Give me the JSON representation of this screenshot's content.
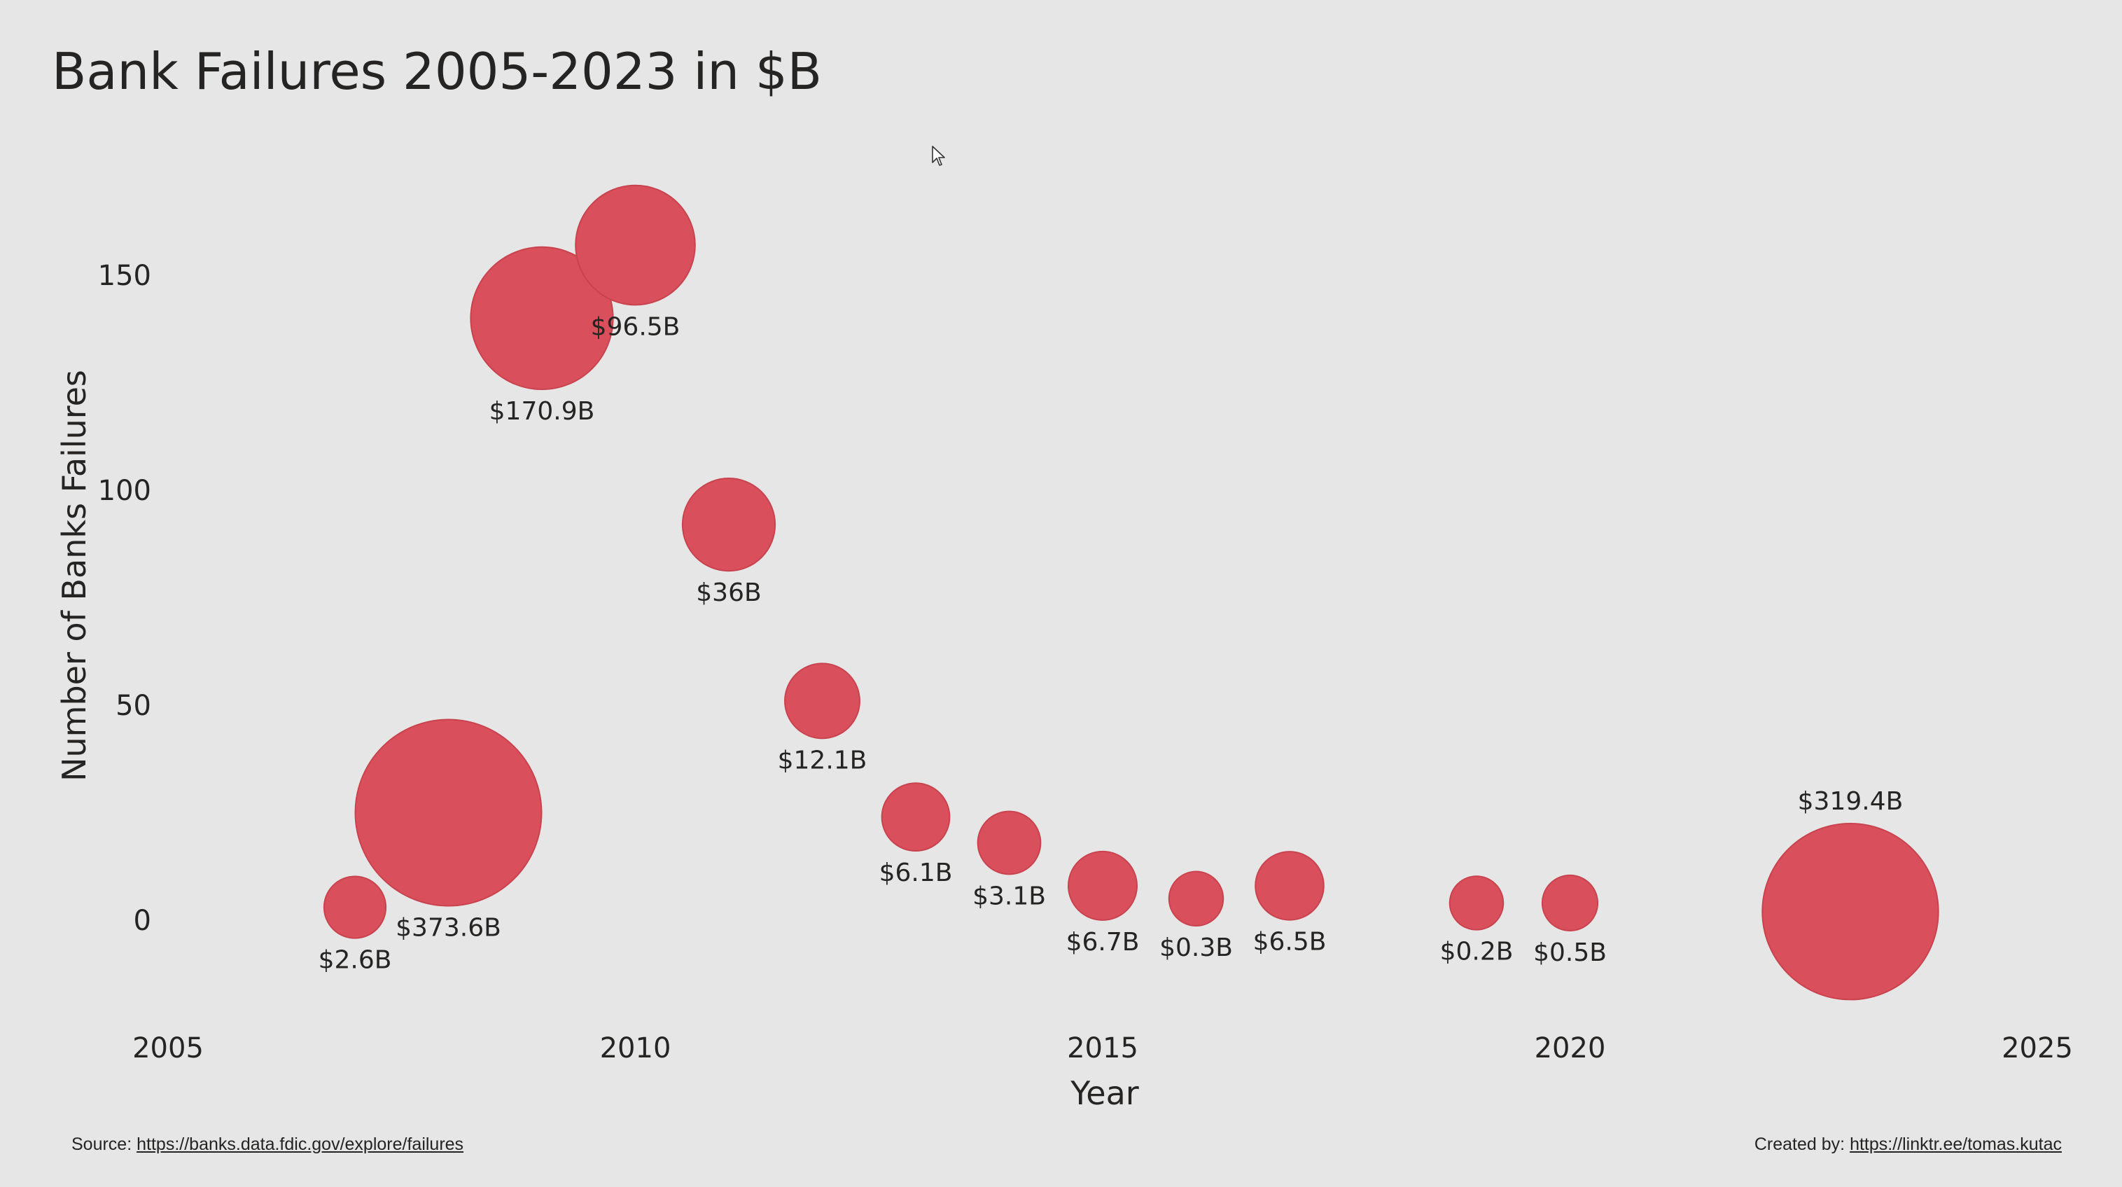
{
  "page": {
    "title": "Bank Failures 2005-2023 in $B"
  },
  "footer": {
    "source_label": "Source:",
    "source_link": "https://banks.data.fdic.gov/explore/failures",
    "credit_label": "Created by:",
    "credit_link": "https://linktr.ee/tomas.kutac"
  },
  "colors": {
    "bubble": "#d9505c",
    "bubble_stroke": "#c9434f",
    "text": "#252423",
    "axis_text": "#252423",
    "background": "#e6e6e6"
  },
  "chart_data": {
    "type": "scatter",
    "title": "Bank Failures 2005-2023 in $B",
    "xlabel": "Year",
    "ylabel": "Number of Banks Failures",
    "xlim": [
      2005,
      2025
    ],
    "ylim": [
      -25,
      175
    ],
    "xticks": [
      2005,
      2010,
      2015,
      2020,
      2025
    ],
    "yticks": [
      0,
      50,
      100,
      150
    ],
    "grid": false,
    "legend": "none",
    "size_encodes": "Total assets ($B)",
    "points": [
      {
        "x": 2007,
        "y": 3,
        "size": 2.6,
        "label": "$2.6B",
        "label_pos": "below"
      },
      {
        "x": 2008,
        "y": 25,
        "size": 373.6,
        "label": "$373.6B",
        "label_pos": "below"
      },
      {
        "x": 2009,
        "y": 140,
        "size": 170.9,
        "label": "$170.9B",
        "label_pos": "below"
      },
      {
        "x": 2010,
        "y": 157,
        "size": 96.5,
        "label": "$96.5B",
        "label_pos": "below"
      },
      {
        "x": 2011,
        "y": 92,
        "size": 36,
        "label": "$36B",
        "label_pos": "below"
      },
      {
        "x": 2012,
        "y": 51,
        "size": 12.1,
        "label": "$12.1B",
        "label_pos": "below"
      },
      {
        "x": 2013,
        "y": 24,
        "size": 6.1,
        "label": "$6.1B",
        "label_pos": "below"
      },
      {
        "x": 2014,
        "y": 18,
        "size": 3.1,
        "label": "$3.1B",
        "label_pos": "below"
      },
      {
        "x": 2015,
        "y": 8,
        "size": 6.7,
        "label": "$6.7B",
        "label_pos": "below"
      },
      {
        "x": 2016,
        "y": 5,
        "size": 0.3,
        "label": "$0.3B",
        "label_pos": "below"
      },
      {
        "x": 2017,
        "y": 8,
        "size": 6.5,
        "label": "$6.5B",
        "label_pos": "below"
      },
      {
        "x": 2019,
        "y": 4,
        "size": 0.2,
        "label": "$0.2B",
        "label_pos": "below"
      },
      {
        "x": 2020,
        "y": 4,
        "size": 0.5,
        "label": "$0.5B",
        "label_pos": "below"
      },
      {
        "x": 2023,
        "y": 2,
        "size": 319.4,
        "label": "$319.4B",
        "label_pos": "above"
      }
    ]
  }
}
